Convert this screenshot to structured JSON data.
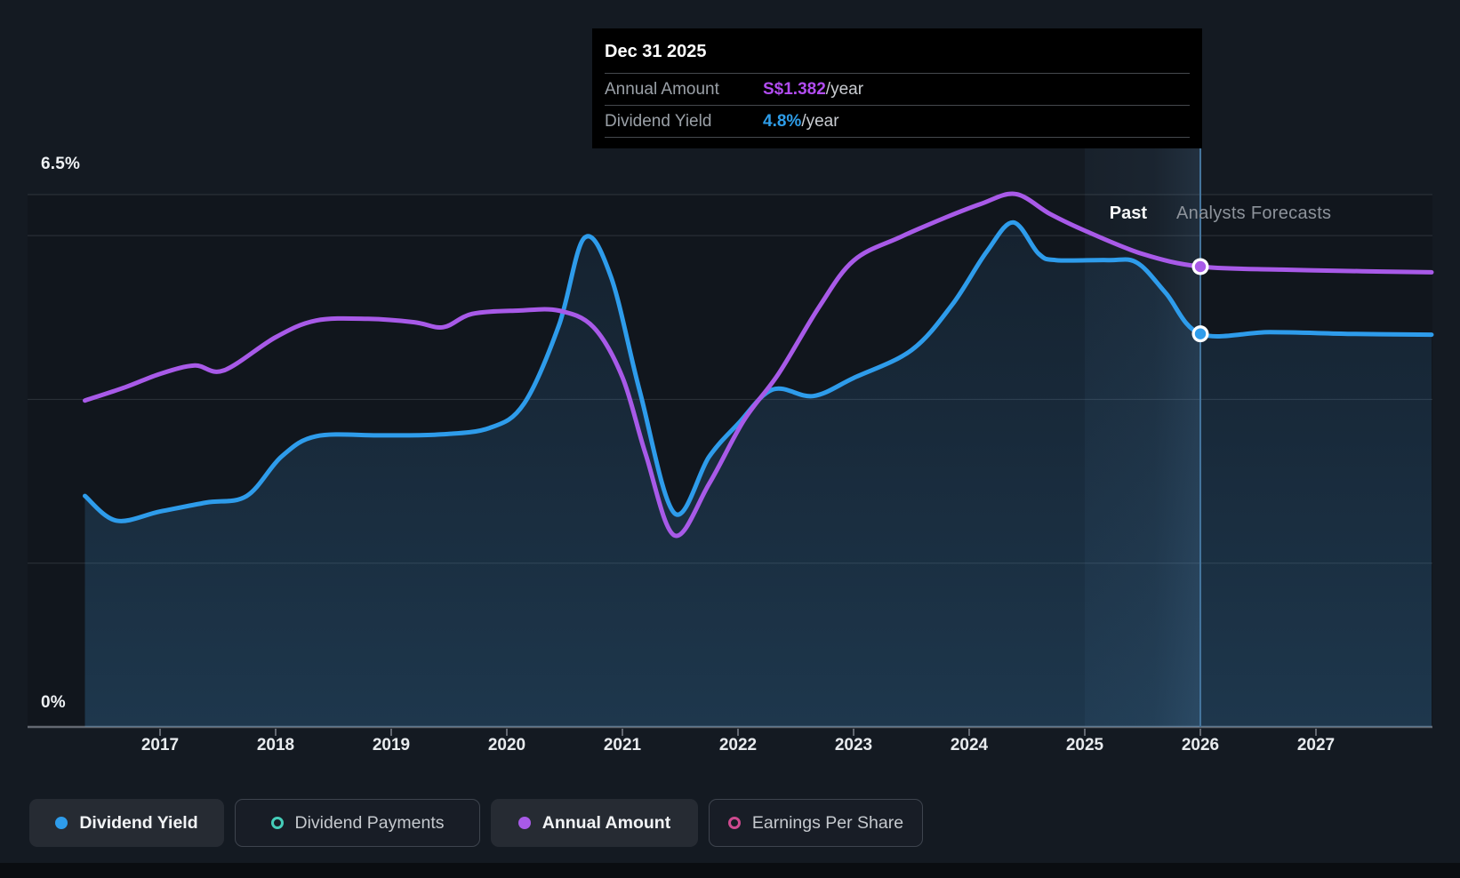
{
  "y_axis": {
    "top": "6.5%",
    "bottom": "0%"
  },
  "x_axis_labels": [
    "2017",
    "2018",
    "2019",
    "2020",
    "2021",
    "2022",
    "2023",
    "2024",
    "2025",
    "2026",
    "2027"
  ],
  "annotations": {
    "past": "Past",
    "forecast": "Analysts Forecasts"
  },
  "tooltip": {
    "date": "Dec 31 2025",
    "rows": [
      {
        "label": "Annual Amount",
        "value": "S$1.382",
        "suffix": "/year",
        "value_color": "#b14cf0"
      },
      {
        "label": "Dividend Yield",
        "value": "4.8%",
        "suffix": "/year",
        "value_color": "#2e9de9"
      }
    ]
  },
  "legend": [
    {
      "label": "Dividend Yield",
      "color": "#2e9ceb",
      "active": true
    },
    {
      "label": "Dividend Payments",
      "color": "#45cdb9",
      "active": false
    },
    {
      "label": "Annual Amount",
      "color": "#a85ae8",
      "active": true
    },
    {
      "label": "Earnings Per Share",
      "color": "#ce4a8f",
      "active": false
    }
  ],
  "colors": {
    "background": "#141a22",
    "blue_line": "#2e9ceb",
    "purple_line": "#a85ae8",
    "gridline": "rgba(150,158,168,0.22)",
    "axis_line": "rgba(165,172,180,0.55)",
    "divider_line": "#44749c"
  },
  "chart_data": {
    "type": "line",
    "title": "Dividend history and forecast",
    "x_domain": [
      2016.35,
      2028.0
    ],
    "x_ticks": [
      2017,
      2018,
      2019,
      2020,
      2021,
      2022,
      2023,
      2024,
      2025,
      2026,
      2027
    ],
    "yield_axis": {
      "label": "Dividend Yield",
      "unit": "%",
      "domain": [
        0,
        6.5
      ],
      "gridlines": [
        0,
        2,
        4,
        6
      ]
    },
    "amount_axis": {
      "label": "Annual Amount",
      "unit": "S$/year"
    },
    "past_forecast_divider_x": 2026,
    "hover_band_x": [
      2025,
      2026
    ],
    "hover_date": "Dec 31 2025",
    "series": [
      {
        "name": "Dividend Yield",
        "axis": "yield",
        "unit": "%",
        "color": "#2e9ceb",
        "area": true,
        "points": [
          [
            2016.35,
            2.82
          ],
          [
            2016.62,
            2.52
          ],
          [
            2017.0,
            2.63
          ],
          [
            2017.4,
            2.74
          ],
          [
            2017.75,
            2.82
          ],
          [
            2018.05,
            3.3
          ],
          [
            2018.35,
            3.55
          ],
          [
            2018.9,
            3.56
          ],
          [
            2019.4,
            3.57
          ],
          [
            2019.85,
            3.65
          ],
          [
            2020.15,
            3.95
          ],
          [
            2020.45,
            4.9
          ],
          [
            2020.67,
            5.97
          ],
          [
            2020.9,
            5.5
          ],
          [
            2021.15,
            4.1
          ],
          [
            2021.45,
            2.61
          ],
          [
            2021.75,
            3.3
          ],
          [
            2022.0,
            3.7
          ],
          [
            2022.3,
            4.12
          ],
          [
            2022.65,
            4.04
          ],
          [
            2023.0,
            4.26
          ],
          [
            2023.5,
            4.6
          ],
          [
            2023.85,
            5.15
          ],
          [
            2024.15,
            5.8
          ],
          [
            2024.38,
            6.16
          ],
          [
            2024.6,
            5.78
          ],
          [
            2024.75,
            5.7
          ],
          [
            2025.2,
            5.7
          ],
          [
            2025.45,
            5.67
          ],
          [
            2025.7,
            5.3
          ],
          [
            2026.0,
            4.8
          ],
          [
            2026.6,
            4.82
          ],
          [
            2027.3,
            4.8
          ],
          [
            2028.0,
            4.79
          ]
        ]
      },
      {
        "name": "Annual Amount",
        "axis": "amount",
        "unit": "S$/year",
        "color": "#a85ae8",
        "area": false,
        "points": [
          [
            2016.35,
            0.98
          ],
          [
            2016.7,
            1.02
          ],
          [
            2017.0,
            1.06
          ],
          [
            2017.3,
            1.085
          ],
          [
            2017.55,
            1.07
          ],
          [
            2018.0,
            1.17
          ],
          [
            2018.35,
            1.22
          ],
          [
            2018.8,
            1.225
          ],
          [
            2019.2,
            1.215
          ],
          [
            2019.45,
            1.2
          ],
          [
            2019.7,
            1.24
          ],
          [
            2020.1,
            1.25
          ],
          [
            2020.45,
            1.25
          ],
          [
            2020.75,
            1.2
          ],
          [
            2021.0,
            1.05
          ],
          [
            2021.2,
            0.82
          ],
          [
            2021.45,
            0.575
          ],
          [
            2021.75,
            0.73
          ],
          [
            2022.05,
            0.92
          ],
          [
            2022.35,
            1.06
          ],
          [
            2022.7,
            1.26
          ],
          [
            2023.0,
            1.4
          ],
          [
            2023.4,
            1.47
          ],
          [
            2023.8,
            1.53
          ],
          [
            2024.1,
            1.57
          ],
          [
            2024.4,
            1.6
          ],
          [
            2024.7,
            1.54
          ],
          [
            2025.0,
            1.49
          ],
          [
            2025.5,
            1.42
          ],
          [
            2026.0,
            1.382
          ],
          [
            2026.7,
            1.373
          ],
          [
            2027.4,
            1.368
          ],
          [
            2028.0,
            1.365
          ]
        ]
      }
    ],
    "markers": [
      {
        "series": "Annual Amount",
        "x": 2026,
        "value": 1.382,
        "color": "#a85ae8"
      },
      {
        "series": "Dividend Yield",
        "x": 2026,
        "value": 4.8,
        "color": "#2e9ceb"
      }
    ]
  }
}
